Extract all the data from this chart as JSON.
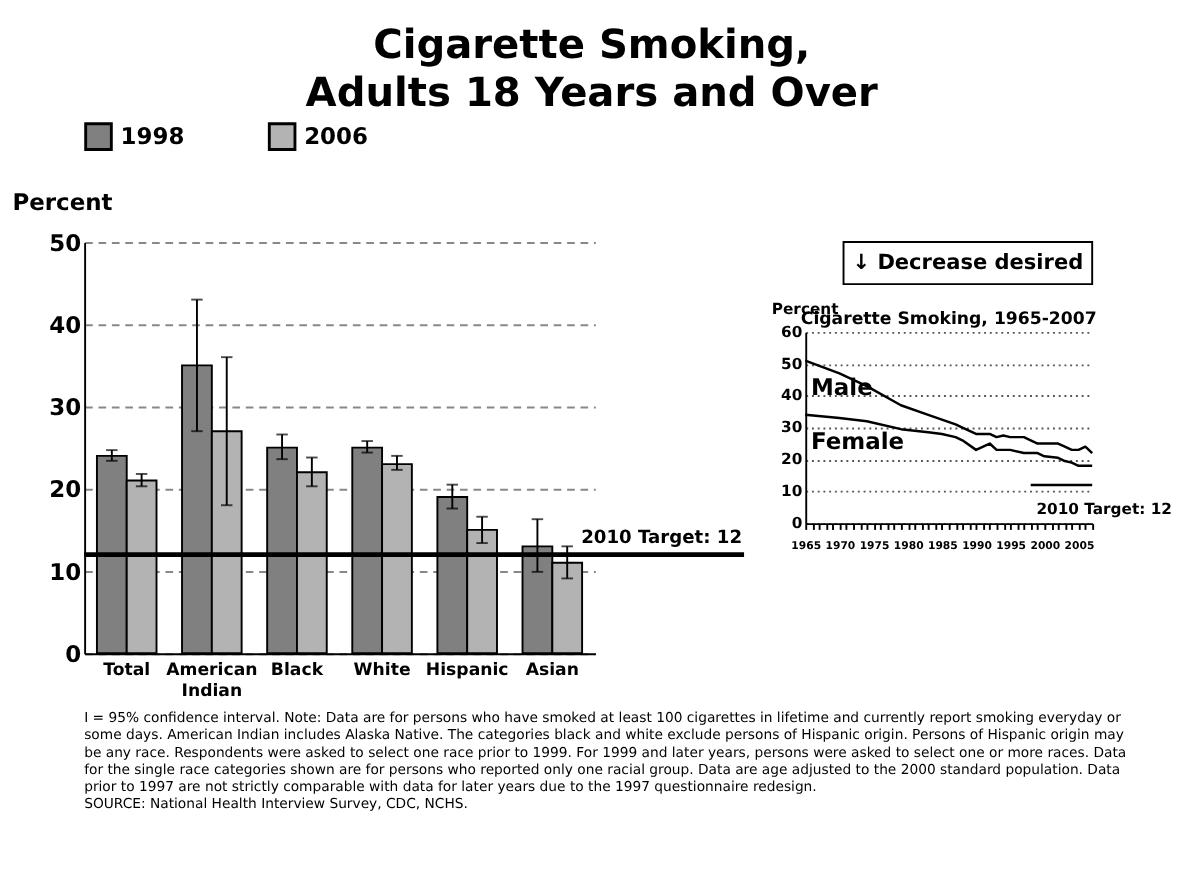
{
  "chart_data": [
    {
      "type": "bar",
      "title": "Cigarette Smoking, Adults 18 Years and Over",
      "ylabel": "Percent",
      "categories": [
        "Total",
        "American Indian",
        "Black",
        "White",
        "Hispanic",
        "Asian"
      ],
      "series": [
        {
          "name": "1998",
          "color": "#808080",
          "values": [
            24,
            35,
            25,
            25,
            19,
            13
          ],
          "errors": [
            [
              23.4,
              24.7
            ],
            [
              27,
              43
            ],
            [
              23.6,
              26.6
            ],
            [
              24.4,
              25.8
            ],
            [
              17.6,
              20.5
            ],
            [
              9.9,
              16.3
            ]
          ]
        },
        {
          "name": "2006",
          "color": "#b3b3b3",
          "values": [
            21,
            27,
            22,
            23,
            15,
            11
          ],
          "errors": [
            [
              20.3,
              21.8
            ],
            [
              18,
              36
            ],
            [
              20.3,
              23.8
            ],
            [
              22.3,
              24
            ],
            [
              13.4,
              16.6
            ],
            [
              9.1,
              13
            ]
          ]
        }
      ],
      "ylim": [
        0,
        50
      ],
      "yticks": [
        0,
        10,
        20,
        30,
        40,
        50
      ],
      "grid": "y",
      "legend": "top",
      "ref_lines": [
        {
          "axis": "y",
          "value": 12,
          "label": "2010 Target: 12",
          "color": "#000000"
        }
      ],
      "annotations": [
        "↓ Decrease desired",
        "I = 95% confidence interval. Note: Data are for persons who have smoked at least 100 cigarettes in lifetime and currently report smoking everyday or some days. American Indian includes Alaska Native. The categories black and white exclude persons of Hispanic origin. Persons of Hispanic origin may be any race. Respondents were asked to select one race prior to 1999. For 1999 and later years, persons were asked to select one or more races. Data for the single race categories shown are for persons who reported only one racial group. Data are age adjusted to the 2000 standard population.  Data prior to 1997 are not strictly comparable with data for later years due to the 1997 questionnaire redesign.",
        "SOURCE: National Health Interview Survey, CDC, NCHS."
      ]
    },
    {
      "type": "line",
      "title": "Cigarette Smoking, 1965-2007",
      "ylabel": "Percent",
      "marker": "none",
      "line_style": "solid",
      "grid": "y",
      "series": [
        {
          "name": "Male",
          "color": "#000000",
          "x": [
            1965,
            1970,
            1974,
            1979,
            1983,
            1985,
            1987,
            1988,
            1990,
            1992,
            1993,
            1994,
            1995,
            1997,
            1998,
            1999,
            2000,
            2002,
            2003,
            2004,
            2005,
            2006,
            2007
          ],
          "values": [
            51,
            47,
            43,
            37,
            34,
            32.5,
            31,
            30,
            28,
            28,
            27,
            27.5,
            27,
            27,
            26,
            25,
            25,
            25,
            24,
            23,
            23,
            24,
            22
          ]
        },
        {
          "name": "Female",
          "color": "#000000",
          "x": [
            1965,
            1970,
            1974,
            1979,
            1983,
            1985,
            1987,
            1988,
            1990,
            1992,
            1993,
            1994,
            1995,
            1997,
            1998,
            1999,
            2000,
            2002,
            2003,
            2004,
            2005,
            2006,
            2007
          ],
          "values": [
            34,
            33,
            32,
            29.5,
            28.5,
            28,
            27,
            26,
            23,
            25,
            23,
            23,
            23,
            22,
            22,
            22,
            21,
            20.5,
            19.5,
            19,
            18,
            18,
            18
          ]
        },
        {
          "name": "2010 Target: 12",
          "color": "#000000",
          "x": [
            1998,
            2007
          ],
          "values": [
            12,
            12
          ]
        }
      ],
      "xlim": [
        1965,
        2007
      ],
      "xticks": [
        1965,
        {
          "value": 1966,
          "label": null
        },
        {
          "value": 1967,
          "label": null
        },
        {
          "value": 1968,
          "label": null
        },
        {
          "value": 1969,
          "label": null
        },
        1970,
        {
          "value": 1971,
          "label": null
        },
        {
          "value": 1972,
          "label": null
        },
        {
          "value": 1973,
          "label": null
        },
        {
          "value": 1974,
          "label": null
        },
        1975,
        {
          "value": 1976,
          "label": null
        },
        {
          "value": 1977,
          "label": null
        },
        {
          "value": 1978,
          "label": null
        },
        {
          "value": 1979,
          "label": null
        },
        1980,
        {
          "value": 1981,
          "label": null
        },
        {
          "value": 1982,
          "label": null
        },
        {
          "value": 1983,
          "label": null
        },
        {
          "value": 1984,
          "label": null
        },
        1985,
        {
          "value": 1986,
          "label": null
        },
        {
          "value": 1987,
          "label": null
        },
        {
          "value": 1988,
          "label": null
        },
        {
          "value": 1989,
          "label": null
        },
        1990,
        {
          "value": 1991,
          "label": null
        },
        {
          "value": 1992,
          "label": null
        },
        {
          "value": 1993,
          "label": null
        },
        {
          "value": 1994,
          "label": null
        },
        1995,
        {
          "value": 1996,
          "label": null
        },
        {
          "value": 1997,
          "label": null
        },
        {
          "value": 1998,
          "label": null
        },
        {
          "value": 1999,
          "label": null
        },
        2000,
        {
          "value": 2001,
          "label": null
        },
        {
          "value": 2002,
          "label": null
        },
        {
          "value": 2003,
          "label": null
        },
        {
          "value": 2004,
          "label": null
        },
        2005,
        {
          "value": 2006,
          "label": null
        },
        {
          "value": 2007,
          "label": null
        }
      ],
      "ylim": [
        0,
        60
      ],
      "yticks": [
        0,
        10,
        20,
        30,
        40,
        50,
        60
      ]
    }
  ]
}
